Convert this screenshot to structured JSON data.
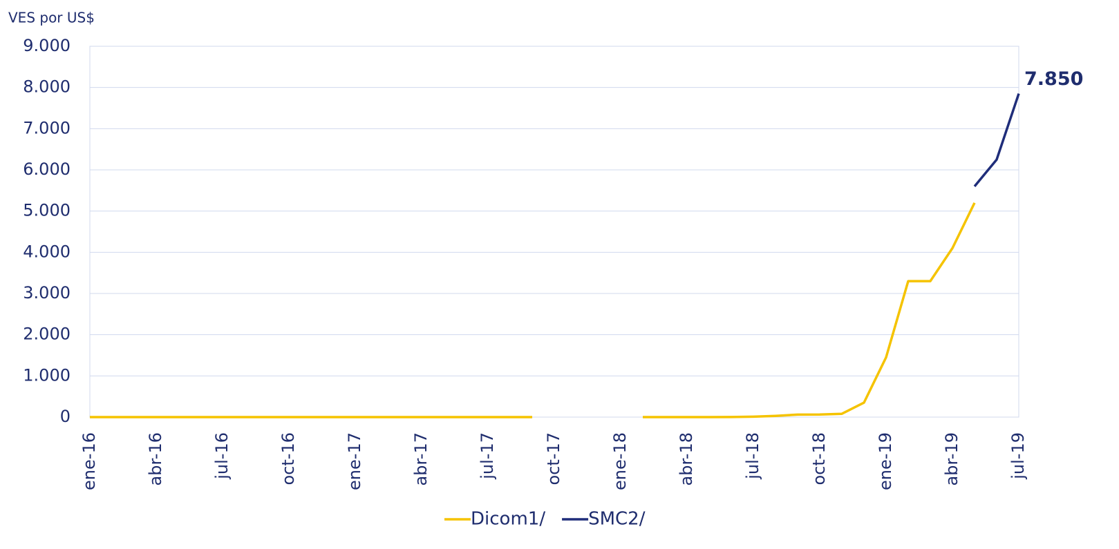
{
  "chart_data": {
    "type": "line",
    "y_axis_label": "VES por US$",
    "categories": [
      "ene-16",
      null,
      null,
      "abr-16",
      null,
      null,
      "jul-16",
      null,
      null,
      "oct-16",
      null,
      null,
      "ene-17",
      null,
      null,
      "abr-17",
      null,
      null,
      "jul-17",
      null,
      null,
      "oct-17",
      null,
      null,
      "ene-18",
      null,
      null,
      "abr-18",
      null,
      null,
      "jul-18",
      null,
      null,
      "oct-18",
      null,
      null,
      "ene-19",
      null,
      null,
      "abr-19",
      null,
      null,
      "jul-19"
    ],
    "series": [
      {
        "name": "Dicom1/",
        "color": "#f5c300",
        "values": [
          0.6,
          0.6,
          0.6,
          0.6,
          0.6,
          0.6,
          0.6,
          0.6,
          0.6,
          0.7,
          0.7,
          0.7,
          0.7,
          0.7,
          0.7,
          0.7,
          0.7,
          0.7,
          1,
          1,
          1,
          null,
          null,
          null,
          null,
          0.3,
          0.5,
          0.7,
          0.8,
          1.2,
          10,
          30,
          60,
          62,
          80,
          350,
          1450,
          3300,
          3300,
          4100,
          5200,
          null,
          null
        ]
      },
      {
        "name": "SMC2/",
        "color": "#1f2d7a",
        "values": [
          null,
          null,
          null,
          null,
          null,
          null,
          null,
          null,
          null,
          null,
          null,
          null,
          null,
          null,
          null,
          null,
          null,
          null,
          null,
          null,
          null,
          null,
          null,
          null,
          null,
          null,
          null,
          null,
          null,
          null,
          null,
          null,
          null,
          null,
          null,
          null,
          null,
          null,
          null,
          null,
          5600,
          6250,
          7850
        ],
        "value_labels": [
          null,
          null,
          null,
          null,
          null,
          null,
          null,
          null,
          null,
          null,
          null,
          null,
          null,
          null,
          null,
          null,
          null,
          null,
          null,
          null,
          null,
          null,
          null,
          null,
          null,
          null,
          null,
          null,
          null,
          null,
          null,
          null,
          null,
          null,
          null,
          null,
          null,
          null,
          null,
          null,
          null,
          null,
          "7.850"
        ]
      }
    ],
    "ylim": [
      0,
      9000
    ],
    "yticks": [
      0,
      {
        "value": 1000,
        "label": "1.000"
      },
      {
        "value": 2000,
        "label": "2.000"
      },
      {
        "value": 3000,
        "label": "3.000"
      },
      {
        "value": 4000,
        "label": "4.000"
      },
      {
        "value": 5000,
        "label": "5.000"
      },
      {
        "value": 6000,
        "label": "6.000"
      },
      {
        "value": 7000,
        "label": "7.000"
      },
      {
        "value": 8000,
        "label": "8.000"
      },
      {
        "value": 9000,
        "label": "9.000"
      }
    ],
    "grid": true,
    "legend": "bottom"
  }
}
